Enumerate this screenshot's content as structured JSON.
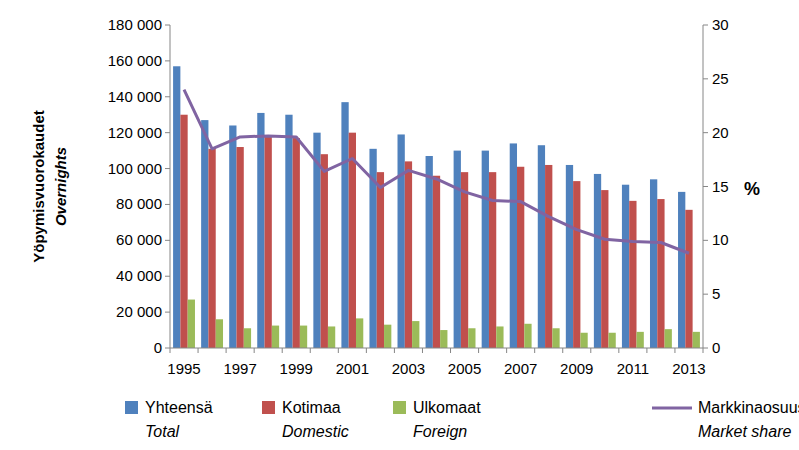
{
  "chart_data": {
    "type": "bar",
    "y_label": "Yöpymisvuorokaudet",
    "y_label_en": "Overnights",
    "y2_label": "%",
    "categories": [
      "1995",
      null,
      "1997",
      null,
      "1999",
      null,
      "2001",
      null,
      "2003",
      null,
      "2005",
      null,
      "2007",
      null,
      "2009",
      null,
      "2011",
      null,
      "2013"
    ],
    "series": [
      {
        "name": "Yhteensä",
        "name_en": "Total",
        "type": "bar",
        "color": "#4f81bd",
        "values": [
          157000,
          127000,
          124000,
          131000,
          130000,
          120000,
          137000,
          111000,
          119000,
          107000,
          110000,
          110000,
          114000,
          113000,
          102000,
          97000,
          91000,
          94000,
          87000
        ]
      },
      {
        "name": "Kotimaa",
        "name_en": "Domestic",
        "type": "bar",
        "color": "#c0504d",
        "values": [
          130000,
          111000,
          112000,
          118000,
          117000,
          108000,
          120000,
          98000,
          104000,
          96000,
          98000,
          98000,
          101000,
          102000,
          93000,
          88000,
          82000,
          83000,
          77000
        ]
      },
      {
        "name": "Ulkomaat",
        "name_en": "Foreign",
        "type": "bar",
        "color": "#9bbb59",
        "values": [
          27000,
          16000,
          11000,
          12500,
          12500,
          12000,
          16500,
          13000,
          15000,
          10000,
          11000,
          12000,
          13500,
          11000,
          8500,
          8500,
          9000,
          10500,
          9000
        ]
      },
      {
        "name": "Markkinaosuus",
        "name_en": "Market share",
        "type": "line",
        "axis": "y2",
        "color": "#8064a2",
        "values": [
          24.0,
          18.5,
          19.6,
          19.7,
          19.6,
          16.4,
          17.6,
          14.9,
          16.5,
          15.7,
          14.5,
          13.7,
          13.6,
          12.2,
          11.0,
          10.1,
          9.9,
          9.8,
          8.8
        ]
      }
    ],
    "ylim": [
      0,
      180000
    ],
    "yticks": [
      0,
      {
        "value": 20000,
        "label": "20 000"
      },
      {
        "value": 40000,
        "label": "40 000"
      },
      {
        "value": 60000,
        "label": "60 000"
      },
      {
        "value": 80000,
        "label": "80 000"
      },
      {
        "value": 100000,
        "label": "100 000"
      },
      {
        "value": 120000,
        "label": "120 000"
      },
      {
        "value": 140000,
        "label": "140 000"
      },
      {
        "value": 160000,
        "label": "160 000"
      },
      {
        "value": 180000,
        "label": "180 000"
      }
    ],
    "y2lim": [
      0,
      30
    ],
    "y2ticks": [
      0,
      5,
      10,
      15,
      20,
      25,
      30
    ],
    "grid": false,
    "legend": "bottom"
  }
}
